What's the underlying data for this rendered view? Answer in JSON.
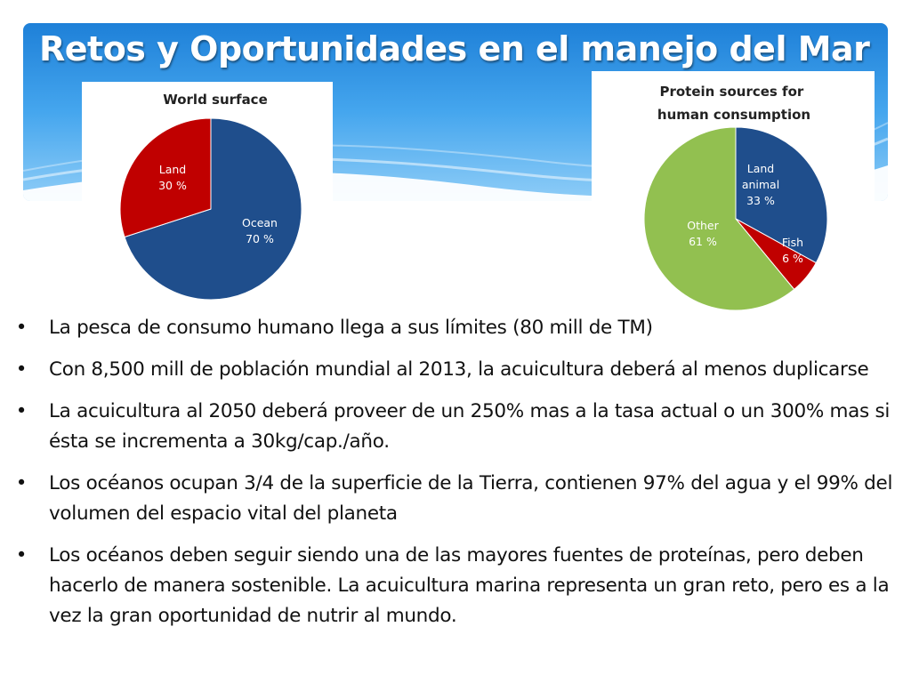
{
  "slide": {
    "title": "Retos y Oportunidades en el manejo del Mar",
    "bullets": [
      "La pesca de consumo humano llega a sus límites (80 mill de TM)",
      "Con 8,500 mill de población mundial al 2013, la acuicultura deberá al menos duplicarse",
      "La acuicultura al 2050 deberá proveer de un 250% mas a la tasa actual o un 300% mas si ésta se incrementa a 30kg/cap./año.",
      "Los océanos ocupan 3/4 de la superficie de la Tierra, contienen 97% del agua y el 99% del volumen del espacio vital del planeta",
      "Los océanos deben seguir siendo una de las mayores fuentes de proteínas, pero deben hacerlo de manera sostenible. La acuicultura marina representa un gran reto, pero es a la vez la gran oportunidad de nutrir al mundo."
    ],
    "colors": {
      "header": "#2a8fe0",
      "title_text": "#ffffff"
    }
  },
  "chart_data": [
    {
      "type": "pie",
      "title": "World surface",
      "slices": [
        {
          "label": "Ocean",
          "value": 70,
          "display": "70 %",
          "color": "#1f4e8c"
        },
        {
          "label": "Land",
          "value": 30,
          "display": "30 %",
          "color": "#c00000"
        }
      ]
    },
    {
      "type": "pie",
      "title": "Protein sources for human consumption",
      "slices": [
        {
          "label": "Land animal",
          "value": 33,
          "display": "33 %",
          "color": "#1f4e8c"
        },
        {
          "label": "Fish",
          "value": 6,
          "display": "6 %",
          "color": "#c00000"
        },
        {
          "label": "Other",
          "value": 61,
          "display": "61 %",
          "color": "#92c050"
        }
      ]
    }
  ]
}
